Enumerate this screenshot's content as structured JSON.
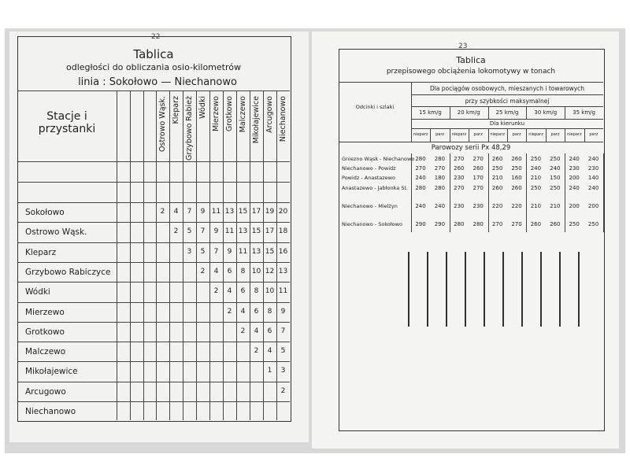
{
  "left_page": {
    "page_number": "22",
    "title": "Tablica",
    "subtitle": "odległości do obliczania osio-kilometrów",
    "line": "linia : Sokołowo — Niechanowo",
    "stations_header": "Stacje i przystanki",
    "columns": [
      "Ostrowo Wąsk.",
      "Kleparz",
      "Grzybowo Rabież",
      "Wódki",
      "Mierzewo",
      "Grotkowo",
      "Malczewo",
      "Mikołajewice",
      "Arcugowo",
      "Niechanowo"
    ],
    "rows": [
      {
        "station": "Sokołowo",
        "values": [
          "2",
          "4",
          "7",
          "9",
          "11",
          "13",
          "15",
          "17",
          "19",
          "20"
        ]
      },
      {
        "station": "Ostrowo Wąsk.",
        "values": [
          "2",
          "5",
          "7",
          "9",
          "11",
          "13",
          "15",
          "17",
          "18"
        ]
      },
      {
        "station": "Kleparz",
        "values": [
          "3",
          "5",
          "7",
          "9",
          "11",
          "13",
          "15",
          "16"
        ]
      },
      {
        "station": "Grzybowo Rabiczyce",
        "values": [
          "2",
          "4",
          "6",
          "8",
          "10",
          "12",
          "13"
        ]
      },
      {
        "station": "Wódki",
        "values": [
          "2",
          "4",
          "6",
          "8",
          "10",
          "11"
        ]
      },
      {
        "station": "Mierzewo",
        "values": [
          "2",
          "4",
          "6",
          "8",
          "9"
        ]
      },
      {
        "station": "Grotkowo",
        "values": [
          "2",
          "4",
          "6",
          "7"
        ]
      },
      {
        "station": "Malczewo",
        "values": [
          "2",
          "4",
          "5"
        ]
      },
      {
        "station": "Mikołajewice",
        "values": [
          "1",
          "3"
        ]
      },
      {
        "station": "Arcugowo",
        "values": [
          "2"
        ]
      },
      {
        "station": "Niechanowo",
        "values": []
      }
    ]
  },
  "right_page": {
    "page_number": "23",
    "title": "Tablica",
    "subtitle": "przepisowego obciążenia lokomotywy w tonach",
    "sections_header": "Odcinki i szlaki",
    "trains_header": "Dla pociągów osobowych, mieszanych i towarowych",
    "speed_header": "przy szybkości maksymalnej",
    "speeds": [
      "15 km/g",
      "20 km/g",
      "25 km/g",
      "30 km/g",
      "35 km/g"
    ],
    "direction_header": "Dla kierunku",
    "directions": [
      "nieparz",
      "parz",
      "nieparz",
      "parz",
      "nieparz",
      "parz",
      "nieparz",
      "parz",
      "nieparz",
      "parz"
    ],
    "locomotive": "Parowozy serii Px 48,29",
    "rows": [
      {
        "section": "Gniezno Wąsk - Niechanowo",
        "values": [
          "280",
          "280",
          "270",
          "270",
          "260",
          "260",
          "250",
          "250",
          "240",
          "240"
        ]
      },
      {
        "section": "Niechanowo - Powidz",
        "values": [
          "270",
          "270",
          "260",
          "260",
          "250",
          "250",
          "240",
          "240",
          "230",
          "230"
        ]
      },
      {
        "section": "Powidz - Anastazewo",
        "values": [
          "240",
          "180",
          "230",
          "170",
          "210",
          "160",
          "210",
          "150",
          "200",
          "140"
        ]
      },
      {
        "section": "Anastazewo - Jabłonka St.",
        "values": [
          "280",
          "280",
          "270",
          "270",
          "260",
          "260",
          "250",
          "250",
          "240",
          "240"
        ]
      },
      {
        "section": "Niechanowo - Mielżyn",
        "values": [
          "240",
          "240",
          "230",
          "230",
          "220",
          "220",
          "210",
          "210",
          "200",
          "200"
        ]
      },
      {
        "section": "Niechanowo - Sokołowo",
        "values": [
          "290",
          "290",
          "280",
          "280",
          "270",
          "270",
          "260",
          "260",
          "250",
          "250"
        ]
      }
    ]
  }
}
